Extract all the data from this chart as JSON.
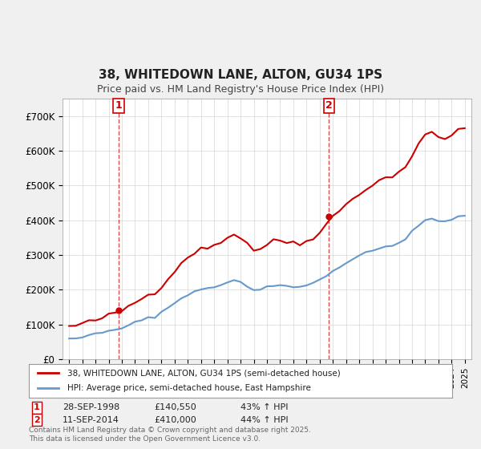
{
  "title": "38, WHITEDOWN LANE, ALTON, GU34 1PS",
  "subtitle": "Price paid vs. HM Land Registry's House Price Index (HPI)",
  "legend_line1": "38, WHITEDOWN LANE, ALTON, GU34 1PS (semi-detached house)",
  "legend_line2": "HPI: Average price, semi-detached house, East Hampshire",
  "sale1_label": "1",
  "sale1_date": "28-SEP-1998",
  "sale1_price": "£140,550",
  "sale1_hpi": "43% ↑ HPI",
  "sale1_year": 1998.75,
  "sale2_label": "2",
  "sale2_date": "11-SEP-2014",
  "sale2_price": "£410,000",
  "sale2_hpi": "44% ↑ HPI",
  "sale2_year": 2014.71,
  "copyright": "Contains HM Land Registry data © Crown copyright and database right 2025.\nThis data is licensed under the Open Government Licence v3.0.",
  "red_color": "#cc0000",
  "blue_color": "#6699cc",
  "bg_color": "#f0f0f0",
  "plot_bg": "#ffffff",
  "ylim": [
    0,
    750000
  ],
  "xlim_start": 1994.5,
  "xlim_end": 2025.5
}
